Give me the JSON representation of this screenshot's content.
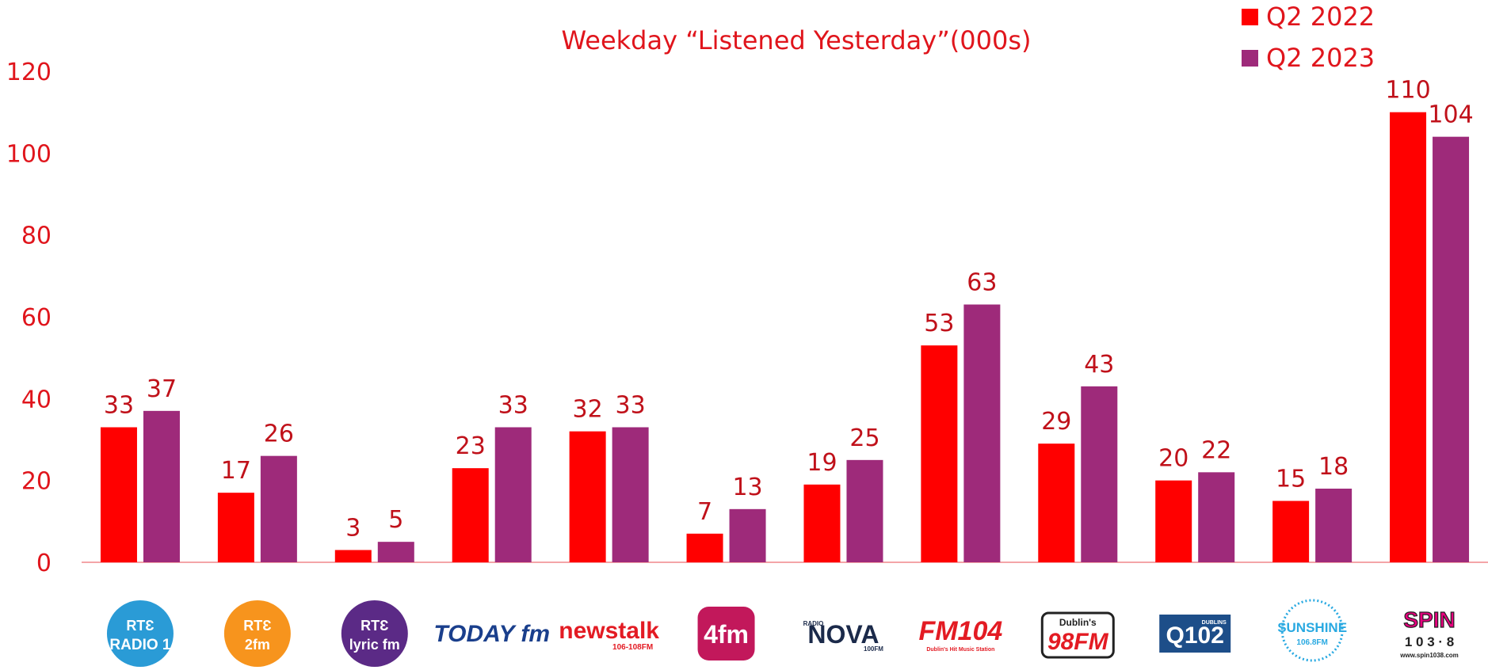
{
  "chart_data": {
    "type": "bar",
    "title": "Weekday “Listened Yesterday”(000s)",
    "xlabel": "",
    "ylabel": "",
    "ylim": [
      0,
      120
    ],
    "yticks": [
      0,
      20,
      40,
      60,
      80,
      100,
      120
    ],
    "grid": false,
    "legend": "top-right",
    "categories": [
      "RTƐ RADIO 1",
      "RTƐ 2fm",
      "RTƐ lyric fm",
      "TODAY fm",
      "newstalk 106-108FM",
      "4fm",
      "RADIO NOVA 100FM",
      "FM104",
      "Dublin's 98FM",
      "Dublin's Q102",
      "Sunshine 106.8FM",
      "SPIN 103.8"
    ],
    "series": [
      {
        "name": "Q2 2022",
        "color": "#ff0000",
        "values": [
          33,
          17,
          3,
          23,
          32,
          7,
          19,
          53,
          29,
          20,
          15,
          110
        ]
      },
      {
        "name": "Q2 2023",
        "color": "#9e2a7a",
        "values": [
          37,
          26,
          5,
          33,
          33,
          13,
          25,
          63,
          43,
          22,
          18,
          104
        ]
      }
    ]
  },
  "logos": [
    {
      "name": "rte-radio1-logo",
      "lines": [
        "RTƐ",
        "RADIO 1"
      ],
      "color": "#2a9bd6"
    },
    {
      "name": "rte-2fm-logo",
      "lines": [
        "RTƐ",
        "2fm"
      ],
      "color": "#f7941d"
    },
    {
      "name": "rte-lyricfm-logo",
      "lines": [
        "RTƐ",
        "lyric fm"
      ],
      "color": "#5b2a86"
    },
    {
      "name": "today-fm-logo",
      "lines": [
        "TODAY fm"
      ],
      "color": "#1a3f8c"
    },
    {
      "name": "newstalk-logo",
      "lines": [
        "newstalk",
        "106-108FM"
      ],
      "color": "#e31b23"
    },
    {
      "name": "4fm-logo",
      "lines": [
        "4fm"
      ],
      "color": "#c2185b"
    },
    {
      "name": "radio-nova-logo",
      "lines": [
        "RADIO",
        "NOVA",
        "100FM"
      ],
      "color": "#1b2a4a"
    },
    {
      "name": "fm104-logo",
      "lines": [
        "FM104",
        "Dublin's Hit Music Station"
      ],
      "color": "#e31b23"
    },
    {
      "name": "98fm-logo",
      "lines": [
        "Dublin's",
        "98FM"
      ],
      "color": "#e31b23"
    },
    {
      "name": "q102-logo",
      "lines": [
        "Q102",
        "DUBLINS"
      ],
      "color": "#1d4e89"
    },
    {
      "name": "sunshine-logo",
      "lines": [
        "SUNSHINE",
        "106.8FM"
      ],
      "color": "#29a9e1"
    },
    {
      "name": "spin-logo",
      "lines": [
        "SPIN",
        "1 0 3 · 8",
        "www.spin1038.com"
      ],
      "color": "#e6007e"
    }
  ]
}
